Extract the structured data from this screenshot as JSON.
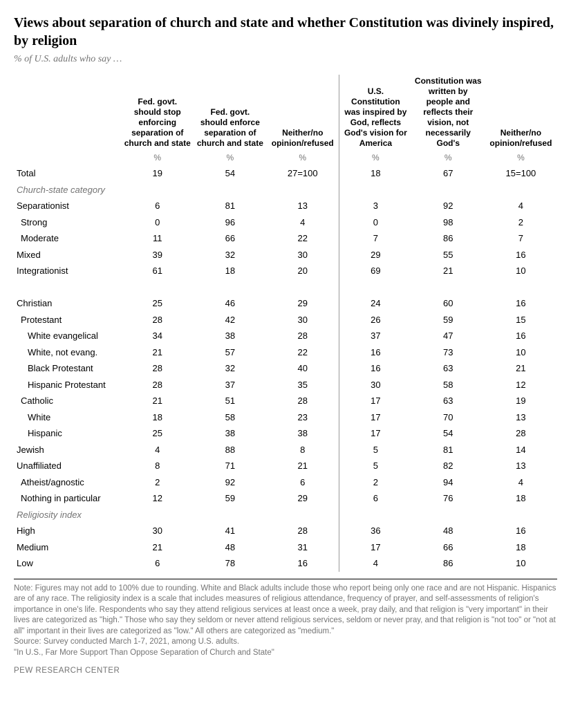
{
  "title": "Views about separation of church and state and whether Constitution was divinely inspired, by religion",
  "subtitle": "% of U.S. adults who say …",
  "columns": {
    "c1": "Fed. govt. should stop enforcing separation of church and state",
    "c2": "Fed. govt. should enforce separation of church and state",
    "c3": "Neither/no opinion/refused",
    "c4": "U.S. Constitution was inspired by God, reflects God's vision for America",
    "c5": "Constitution was written by people and reflects their vision, not necessarily God's",
    "c6": "Neither/no opinion/refused"
  },
  "pct_label": "%",
  "rows": {
    "total": {
      "label": "Total",
      "v": [
        "19",
        "54",
        "27=100",
        "18",
        "67",
        "15=100"
      ]
    },
    "grp_church": {
      "label": "Church-state category"
    },
    "separationist": {
      "label": "Separationist",
      "v": [
        "6",
        "81",
        "13",
        "3",
        "92",
        "4"
      ]
    },
    "strong": {
      "label": "Strong",
      "v": [
        "0",
        "96",
        "4",
        "0",
        "98",
        "2"
      ]
    },
    "moderate": {
      "label": "Moderate",
      "v": [
        "11",
        "66",
        "22",
        "7",
        "86",
        "7"
      ]
    },
    "mixed": {
      "label": "Mixed",
      "v": [
        "39",
        "32",
        "30",
        "29",
        "55",
        "16"
      ]
    },
    "integrationist": {
      "label": "Integrationist",
      "v": [
        "61",
        "18",
        "20",
        "69",
        "21",
        "10"
      ]
    },
    "christian": {
      "label": "Christian",
      "v": [
        "25",
        "46",
        "29",
        "24",
        "60",
        "16"
      ]
    },
    "protestant": {
      "label": "Protestant",
      "v": [
        "28",
        "42",
        "30",
        "26",
        "59",
        "15"
      ]
    },
    "white_evang": {
      "label": "White evangelical",
      "v": [
        "34",
        "38",
        "28",
        "37",
        "47",
        "16"
      ]
    },
    "white_not": {
      "label": "White, not evang.",
      "v": [
        "21",
        "57",
        "22",
        "16",
        "73",
        "10"
      ]
    },
    "black_prot": {
      "label": "Black Protestant",
      "v": [
        "28",
        "32",
        "40",
        "16",
        "63",
        "21"
      ]
    },
    "hisp_prot": {
      "label": "Hispanic Protestant",
      "v": [
        "28",
        "37",
        "35",
        "30",
        "58",
        "12"
      ]
    },
    "catholic": {
      "label": "Catholic",
      "v": [
        "21",
        "51",
        "28",
        "17",
        "63",
        "19"
      ]
    },
    "cath_white": {
      "label": "White",
      "v": [
        "18",
        "58",
        "23",
        "17",
        "70",
        "13"
      ]
    },
    "cath_hisp": {
      "label": "Hispanic",
      "v": [
        "25",
        "38",
        "38",
        "17",
        "54",
        "28"
      ]
    },
    "jewish": {
      "label": "Jewish",
      "v": [
        "4",
        "88",
        "8",
        "5",
        "81",
        "14"
      ]
    },
    "unaffiliated": {
      "label": "Unaffiliated",
      "v": [
        "8",
        "71",
        "21",
        "5",
        "82",
        "13"
      ]
    },
    "ath_agn": {
      "label": "Atheist/agnostic",
      "v": [
        "2",
        "92",
        "6",
        "2",
        "94",
        "4"
      ]
    },
    "nothing": {
      "label": "Nothing in particular",
      "v": [
        "12",
        "59",
        "29",
        "6",
        "76",
        "18"
      ]
    },
    "grp_relig": {
      "label": "Religiosity index"
    },
    "high": {
      "label": "High",
      "v": [
        "30",
        "41",
        "28",
        "36",
        "48",
        "16"
      ]
    },
    "medium": {
      "label": "Medium",
      "v": [
        "21",
        "48",
        "31",
        "17",
        "66",
        "18"
      ]
    },
    "low": {
      "label": "Low",
      "v": [
        "6",
        "78",
        "16",
        "4",
        "86",
        "10"
      ]
    }
  },
  "note": "Note: Figures may not add to 100% due to rounding. White and Black adults include those who report being only one race and are not Hispanic. Hispanics are of any race. The religiosity index is a scale that includes measures of religious attendance, frequency of prayer, and self-assessments of religion's importance in one's life. Respondents who say they attend religious services at least once a week, pray daily, and that religion is \"very important\" in their lives are categorized as \"high.\" Those who say they seldom or never attend religious services, seldom or never pray, and that religion is \"not too\" or \"not at all\" important in their lives are categorized as \"low.\" All others are categorized as \"medium.\"",
  "source": "Source: Survey conducted March 1-7, 2021, among U.S. adults.",
  "report": "\"In U.S., Far More Support Than Oppose Separation of Church and State\"",
  "footer": "PEW RESEARCH CENTER"
}
